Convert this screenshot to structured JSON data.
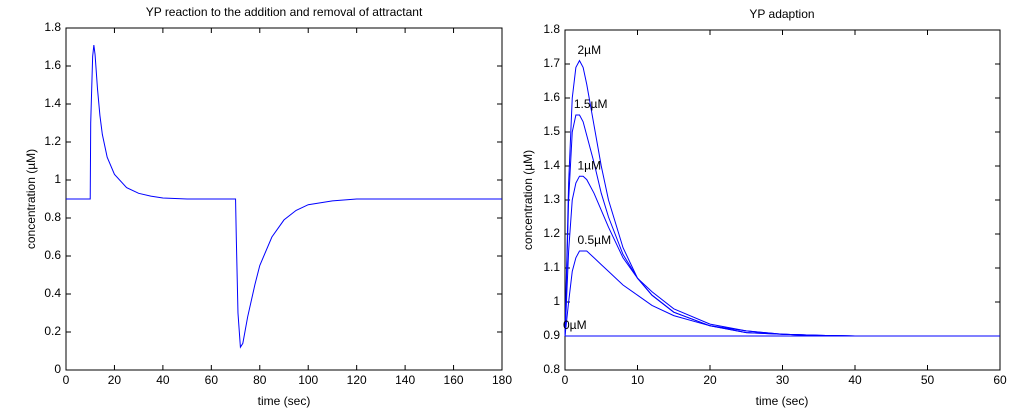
{
  "chart_data": [
    {
      "type": "line",
      "title": "YP reaction to the addition and removal of attractant",
      "x_label": "time (sec)",
      "y_label": "concentration (µM)",
      "color": "#0000ff",
      "x": [
        0,
        10,
        10.2,
        11,
        11.5,
        12,
        13,
        14,
        15,
        17,
        20,
        25,
        30,
        35,
        40,
        50,
        60,
        70,
        70.3,
        71,
        72,
        73,
        75,
        78,
        80,
        85,
        90,
        95,
        100,
        110,
        120,
        140,
        160,
        180
      ],
      "values": [
        0.9,
        0.9,
        1.3,
        1.65,
        1.71,
        1.66,
        1.48,
        1.34,
        1.24,
        1.12,
        1.03,
        0.96,
        0.93,
        0.915,
        0.905,
        0.9,
        0.9,
        0.9,
        0.7,
        0.3,
        0.12,
        0.14,
        0.28,
        0.45,
        0.55,
        0.7,
        0.79,
        0.84,
        0.87,
        0.89,
        0.9,
        0.9,
        0.9,
        0.9
      ],
      "xlim": [
        0,
        180
      ],
      "xticks": [
        0,
        20,
        40,
        60,
        80,
        100,
        120,
        140,
        160,
        180
      ],
      "ylim": [
        0,
        1.8
      ],
      "yticks": [
        0,
        0.2,
        0.4,
        0.6,
        0.8,
        1,
        1.2,
        1.4,
        1.6,
        1.8
      ]
    },
    {
      "type": "line",
      "title": "YP adaption",
      "x_label": "time (sec)",
      "y_label": "concentration (µM)",
      "x": [
        0,
        0.5,
        1,
        1.5,
        2,
        2.5,
        3,
        4,
        5,
        6,
        8,
        10,
        12,
        15,
        20,
        25,
        30,
        35,
        40,
        60
      ],
      "series": [
        {
          "name": "2µM",
          "color": "#0000ff",
          "values": [
            0.9,
            1.35,
            1.6,
            1.69,
            1.71,
            1.69,
            1.64,
            1.52,
            1.4,
            1.3,
            1.16,
            1.07,
            1.02,
            0.97,
            0.93,
            0.91,
            0.905,
            0.902,
            0.9,
            0.9
          ]
        },
        {
          "name": "1.5µM",
          "color": "#0000ff",
          "values": [
            0.9,
            1.3,
            1.5,
            1.55,
            1.55,
            1.53,
            1.49,
            1.41,
            1.32,
            1.25,
            1.14,
            1.07,
            1.02,
            0.97,
            0.93,
            0.91,
            0.905,
            0.902,
            0.9,
            0.9
          ]
        },
        {
          "name": "1µM",
          "color": "#0000ff",
          "values": [
            0.9,
            1.15,
            1.3,
            1.35,
            1.37,
            1.37,
            1.36,
            1.32,
            1.27,
            1.22,
            1.13,
            1.07,
            1.03,
            0.98,
            0.935,
            0.915,
            0.905,
            0.902,
            0.9,
            0.9
          ]
        },
        {
          "name": "0.5µM",
          "color": "#0000ff",
          "values": [
            0.9,
            1.0,
            1.09,
            1.13,
            1.15,
            1.15,
            1.15,
            1.13,
            1.11,
            1.09,
            1.05,
            1.02,
            0.99,
            0.96,
            0.93,
            0.915,
            0.905,
            0.902,
            0.9,
            0.9
          ]
        },
        {
          "name": "0µM",
          "color": "#0000ff",
          "values": [
            0.9,
            0.9,
            0.9,
            0.9,
            0.9,
            0.9,
            0.9,
            0.9,
            0.9,
            0.9,
            0.9,
            0.9,
            0.9,
            0.9,
            0.9,
            0.9,
            0.9,
            0.9,
            0.9,
            0.9
          ]
        }
      ],
      "xlim": [
        0,
        60
      ],
      "xticks": [
        0,
        10,
        20,
        30,
        40,
        50,
        60
      ],
      "ylim": [
        0.8,
        1.8
      ],
      "yticks": [
        0.8,
        0.9,
        1,
        1.1,
        1.2,
        1.3,
        1.4,
        1.5,
        1.6,
        1.7,
        1.8
      ]
    }
  ]
}
